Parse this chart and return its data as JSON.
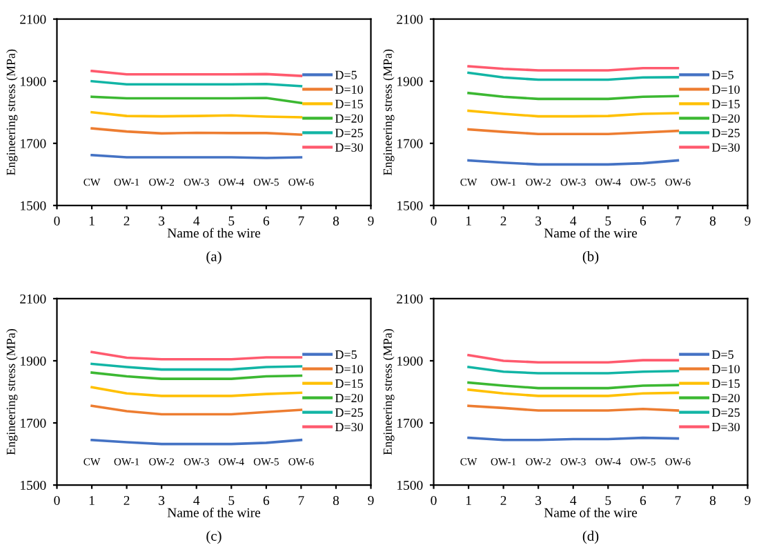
{
  "chart_data": [
    {
      "type": "line",
      "title": "(a)",
      "xlabel": "Name of the wire",
      "ylabel": "Engineering stress (MPa)",
      "x": [
        1,
        2,
        3,
        4,
        5,
        6,
        7
      ],
      "xlim": [
        0,
        9
      ],
      "xticks": [
        0,
        1,
        2,
        3,
        4,
        5,
        6,
        7,
        8,
        9
      ],
      "ylim": [
        1500,
        2100
      ],
      "yticks": [
        1500,
        1700,
        1900,
        2100
      ],
      "grid": false,
      "legend": "right",
      "marker": "none",
      "line_style": "solid",
      "annotations": [
        "CW",
        "OW-1",
        "OW-2",
        "OW-3",
        "OW-4",
        "OW-5",
        "OW-6"
      ],
      "series": [
        {
          "name": "D=5",
          "color": "#4472c4",
          "values": [
            1662,
            1655,
            1655,
            1655,
            1655,
            1653,
            1655
          ]
        },
        {
          "name": "D=10",
          "color": "#ed7d31",
          "values": [
            1748,
            1738,
            1732,
            1734,
            1733,
            1733,
            1728
          ]
        },
        {
          "name": "D=15",
          "color": "#ffc000",
          "values": [
            1800,
            1788,
            1787,
            1788,
            1790,
            1786,
            1784
          ]
        },
        {
          "name": "D=20",
          "color": "#3cb832",
          "values": [
            1850,
            1845,
            1845,
            1845,
            1845,
            1846,
            1830
          ]
        },
        {
          "name": "D=25",
          "color": "#12b5a5",
          "values": [
            1900,
            1890,
            1890,
            1890,
            1890,
            1891,
            1884
          ]
        },
        {
          "name": "D=30",
          "color": "#ff5a6e",
          "values": [
            1933,
            1922,
            1922,
            1922,
            1922,
            1923,
            1917
          ]
        }
      ]
    },
    {
      "type": "line",
      "title": "(b)",
      "xlabel": "Name of the wire",
      "ylabel": "Engineering stress (MPa)",
      "x": [
        1,
        2,
        3,
        4,
        5,
        6,
        7
      ],
      "xlim": [
        0,
        9
      ],
      "xticks": [
        0,
        1,
        2,
        3,
        4,
        5,
        6,
        7,
        8,
        9
      ],
      "ylim": [
        1500,
        2100
      ],
      "yticks": [
        1500,
        1700,
        1900,
        2100
      ],
      "grid": false,
      "legend": "right",
      "marker": "none",
      "line_style": "solid",
      "annotations": [
        "CW",
        "OW-1",
        "OW-2",
        "OW-3",
        "OW-4",
        "OW-5",
        "OW-6"
      ],
      "series": [
        {
          "name": "D=5",
          "color": "#4472c4",
          "values": [
            1645,
            1638,
            1632,
            1632,
            1632,
            1636,
            1645
          ]
        },
        {
          "name": "D=10",
          "color": "#ed7d31",
          "values": [
            1745,
            1737,
            1730,
            1730,
            1730,
            1735,
            1740
          ]
        },
        {
          "name": "D=15",
          "color": "#ffc000",
          "values": [
            1805,
            1795,
            1787,
            1787,
            1788,
            1795,
            1797
          ]
        },
        {
          "name": "D=20",
          "color": "#3cb832",
          "values": [
            1862,
            1850,
            1843,
            1843,
            1843,
            1850,
            1852
          ]
        },
        {
          "name": "D=25",
          "color": "#12b5a5",
          "values": [
            1927,
            1912,
            1905,
            1905,
            1905,
            1912,
            1913
          ]
        },
        {
          "name": "D=30",
          "color": "#ff5a6e",
          "values": [
            1948,
            1940,
            1935,
            1935,
            1935,
            1942,
            1942
          ]
        }
      ]
    },
    {
      "type": "line",
      "title": "(c)",
      "xlabel": "Name of the wire",
      "ylabel": "Engineering stress (MPa)",
      "x": [
        1,
        2,
        3,
        4,
        5,
        6,
        7
      ],
      "xlim": [
        0,
        9
      ],
      "xticks": [
        0,
        1,
        2,
        3,
        4,
        5,
        6,
        7,
        8,
        9
      ],
      "ylim": [
        1500,
        2100
      ],
      "yticks": [
        1500,
        1700,
        1900,
        2100
      ],
      "grid": false,
      "legend": "right",
      "marker": "none",
      "line_style": "solid",
      "annotations": [
        "CW",
        "OW-1",
        "OW-2",
        "OW-3",
        "OW-4",
        "OW-5",
        "OW-6"
      ],
      "series": [
        {
          "name": "D=5",
          "color": "#4472c4",
          "values": [
            1645,
            1638,
            1632,
            1632,
            1632,
            1636,
            1645
          ]
        },
        {
          "name": "D=10",
          "color": "#ed7d31",
          "values": [
            1755,
            1738,
            1728,
            1728,
            1728,
            1735,
            1742
          ]
        },
        {
          "name": "D=15",
          "color": "#ffc000",
          "values": [
            1815,
            1795,
            1787,
            1787,
            1787,
            1793,
            1797
          ]
        },
        {
          "name": "D=20",
          "color": "#3cb832",
          "values": [
            1862,
            1850,
            1842,
            1842,
            1842,
            1850,
            1852
          ]
        },
        {
          "name": "D=25",
          "color": "#12b5a5",
          "values": [
            1890,
            1880,
            1872,
            1872,
            1872,
            1880,
            1882
          ]
        },
        {
          "name": "D=30",
          "color": "#ff5a6e",
          "values": [
            1928,
            1910,
            1905,
            1905,
            1905,
            1911,
            1911
          ]
        }
      ]
    },
    {
      "type": "line",
      "title": "(d)",
      "xlabel": "Name of the wire",
      "ylabel": "Engineering stress (MPa)",
      "x": [
        1,
        2,
        3,
        4,
        5,
        6,
        7
      ],
      "xlim": [
        0,
        9
      ],
      "xticks": [
        0,
        1,
        2,
        3,
        4,
        5,
        6,
        7,
        8,
        9
      ],
      "ylim": [
        1500,
        2100
      ],
      "yticks": [
        1500,
        1700,
        1900,
        2100
      ],
      "grid": false,
      "legend": "right",
      "marker": "none",
      "line_style": "solid",
      "annotations": [
        "CW",
        "OW-1",
        "OW-2",
        "OW-3",
        "OW-4",
        "OW-5",
        "OW-6"
      ],
      "series": [
        {
          "name": "D=5",
          "color": "#4472c4",
          "values": [
            1652,
            1645,
            1645,
            1648,
            1648,
            1652,
            1650
          ]
        },
        {
          "name": "D=10",
          "color": "#ed7d31",
          "values": [
            1755,
            1748,
            1740,
            1740,
            1740,
            1745,
            1740
          ]
        },
        {
          "name": "D=15",
          "color": "#ffc000",
          "values": [
            1807,
            1795,
            1787,
            1787,
            1787,
            1795,
            1797
          ]
        },
        {
          "name": "D=20",
          "color": "#3cb832",
          "values": [
            1830,
            1820,
            1812,
            1812,
            1812,
            1820,
            1822
          ]
        },
        {
          "name": "D=25",
          "color": "#12b5a5",
          "values": [
            1880,
            1865,
            1860,
            1860,
            1860,
            1865,
            1867
          ]
        },
        {
          "name": "D=30",
          "color": "#ff5a6e",
          "values": [
            1918,
            1900,
            1895,
            1895,
            1895,
            1902,
            1902
          ]
        }
      ]
    }
  ]
}
